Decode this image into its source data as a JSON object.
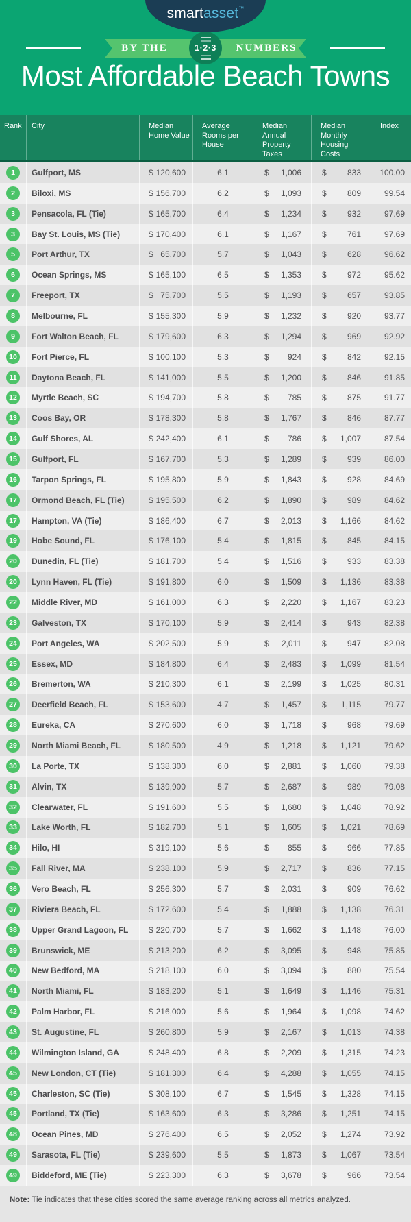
{
  "brand": {
    "smart": "smart",
    "asset": "asset",
    "tm": "™"
  },
  "banner": {
    "left": "BY THE",
    "right": "NUMBERS",
    "badge": "1·2·3"
  },
  "title": "Most Affordable Beach Towns",
  "footer": {
    "note_label": "Note:",
    "note_text": " Tie indicates that these cities scored the same average ranking across all metrics analyzed."
  },
  "colors": {
    "background": "#0BA572",
    "table_header": "#18835E",
    "rank_badge": "#4CC368",
    "ribbon": "#55C46E",
    "ribbon_circle": "#0E7F57",
    "logo_navy": "#1B3D54",
    "logo_asset_blue": "#56B8DB",
    "row_dark": "#E1E1E1",
    "row_light": "#EFEFEF"
  },
  "chart_data": {
    "type": "table",
    "title": "Most Affordable Beach Towns",
    "columns": [
      "Rank",
      "City",
      "Median Home Value",
      "Average Rooms per House",
      "Median Annual Property Taxes",
      "Median Monthly Housing Costs",
      "Index"
    ],
    "rows": [
      {
        "rank": "1",
        "city": "Gulfport, MS",
        "home_value": "120,600",
        "rooms": "6.1",
        "taxes": "1,006",
        "costs": "833",
        "index": "100.00"
      },
      {
        "rank": "2",
        "city": "Biloxi, MS",
        "home_value": "156,700",
        "rooms": "6.2",
        "taxes": "1,093",
        "costs": "809",
        "index": "99.54"
      },
      {
        "rank": "3",
        "city": "Pensacola, FL (Tie)",
        "home_value": "165,700",
        "rooms": "6.4",
        "taxes": "1,234",
        "costs": "932",
        "index": "97.69"
      },
      {
        "rank": "3",
        "city": "Bay St. Louis, MS (Tie)",
        "home_value": "170,400",
        "rooms": "6.1",
        "taxes": "1,167",
        "costs": "761",
        "index": "97.69"
      },
      {
        "rank": "5",
        "city": "Port Arthur, TX",
        "home_value": "65,700",
        "rooms": "5.7",
        "taxes": "1,043",
        "costs": "628",
        "index": "96.62"
      },
      {
        "rank": "6",
        "city": "Ocean Springs, MS",
        "home_value": "165,100",
        "rooms": "6.5",
        "taxes": "1,353",
        "costs": "972",
        "index": "95.62"
      },
      {
        "rank": "7",
        "city": "Freeport, TX",
        "home_value": "75,700",
        "rooms": "5.5",
        "taxes": "1,193",
        "costs": "657",
        "index": "93.85"
      },
      {
        "rank": "8",
        "city": "Melbourne, FL",
        "home_value": "155,300",
        "rooms": "5.9",
        "taxes": "1,232",
        "costs": "920",
        "index": "93.77"
      },
      {
        "rank": "9",
        "city": "Fort Walton Beach, FL",
        "home_value": "179,600",
        "rooms": "6.3",
        "taxes": "1,294",
        "costs": "969",
        "index": "92.92"
      },
      {
        "rank": "10",
        "city": "Fort Pierce, FL",
        "home_value": "100,100",
        "rooms": "5.3",
        "taxes": "924",
        "costs": "842",
        "index": "92.15"
      },
      {
        "rank": "11",
        "city": "Daytona Beach, FL",
        "home_value": "141,000",
        "rooms": "5.5",
        "taxes": "1,200",
        "costs": "846",
        "index": "91.85"
      },
      {
        "rank": "12",
        "city": "Myrtle Beach, SC",
        "home_value": "194,700",
        "rooms": "5.8",
        "taxes": "785",
        "costs": "875",
        "index": "91.77"
      },
      {
        "rank": "13",
        "city": "Coos Bay, OR",
        "home_value": "178,300",
        "rooms": "5.8",
        "taxes": "1,767",
        "costs": "846",
        "index": "87.77"
      },
      {
        "rank": "14",
        "city": "Gulf Shores, AL",
        "home_value": "242,400",
        "rooms": "6.1",
        "taxes": "786",
        "costs": "1,007",
        "index": "87.54"
      },
      {
        "rank": "15",
        "city": "Gulfport, FL",
        "home_value": "167,700",
        "rooms": "5.3",
        "taxes": "1,289",
        "costs": "939",
        "index": "86.00"
      },
      {
        "rank": "16",
        "city": "Tarpon Springs, FL",
        "home_value": "195,800",
        "rooms": "5.9",
        "taxes": "1,843",
        "costs": "928",
        "index": "84.69"
      },
      {
        "rank": "17",
        "city": "Ormond Beach, FL (Tie)",
        "home_value": "195,500",
        "rooms": "6.2",
        "taxes": "1,890",
        "costs": "989",
        "index": "84.62"
      },
      {
        "rank": "17",
        "city": "Hampton, VA (Tie)",
        "home_value": "186,400",
        "rooms": "6.7",
        "taxes": "2,013",
        "costs": "1,166",
        "index": "84.62"
      },
      {
        "rank": "19",
        "city": "Hobe Sound, FL",
        "home_value": "176,100",
        "rooms": "5.4",
        "taxes": "1,815",
        "costs": "845",
        "index": "84.15"
      },
      {
        "rank": "20",
        "city": "Dunedin, FL (Tie)",
        "home_value": "181,700",
        "rooms": "5.4",
        "taxes": "1,516",
        "costs": "933",
        "index": "83.38"
      },
      {
        "rank": "20",
        "city": "Lynn Haven, FL (Tie)",
        "home_value": "191,800",
        "rooms": "6.0",
        "taxes": "1,509",
        "costs": "1,136",
        "index": "83.38"
      },
      {
        "rank": "22",
        "city": "Middle River, MD",
        "home_value": "161,000",
        "rooms": "6.3",
        "taxes": "2,220",
        "costs": "1,167",
        "index": "83.23"
      },
      {
        "rank": "23",
        "city": "Galveston, TX",
        "home_value": "170,100",
        "rooms": "5.9",
        "taxes": "2,414",
        "costs": "943",
        "index": "82.38"
      },
      {
        "rank": "24",
        "city": "Port Angeles, WA",
        "home_value": "202,500",
        "rooms": "5.9",
        "taxes": "2,011",
        "costs": "947",
        "index": "82.08"
      },
      {
        "rank": "25",
        "city": "Essex, MD",
        "home_value": "184,800",
        "rooms": "6.4",
        "taxes": "2,483",
        "costs": "1,099",
        "index": "81.54"
      },
      {
        "rank": "26",
        "city": "Bremerton, WA",
        "home_value": "210,300",
        "rooms": "6.1",
        "taxes": "2,199",
        "costs": "1,025",
        "index": "80.31"
      },
      {
        "rank": "27",
        "city": "Deerfield Beach, FL",
        "home_value": "153,600",
        "rooms": "4.7",
        "taxes": "1,457",
        "costs": "1,115",
        "index": "79.77"
      },
      {
        "rank": "28",
        "city": "Eureka, CA",
        "home_value": "270,600",
        "rooms": "6.0",
        "taxes": "1,718",
        "costs": "968",
        "index": "79.69"
      },
      {
        "rank": "29",
        "city": "North Miami Beach, FL",
        "home_value": "180,500",
        "rooms": "4.9",
        "taxes": "1,218",
        "costs": "1,121",
        "index": "79.62"
      },
      {
        "rank": "30",
        "city": "La Porte, TX",
        "home_value": "138,300",
        "rooms": "6.0",
        "taxes": "2,881",
        "costs": "1,060",
        "index": "79.38"
      },
      {
        "rank": "31",
        "city": "Alvin, TX",
        "home_value": "139,900",
        "rooms": "5.7",
        "taxes": "2,687",
        "costs": "989",
        "index": "79.08"
      },
      {
        "rank": "32",
        "city": "Clearwater, FL",
        "home_value": "191,600",
        "rooms": "5.5",
        "taxes": "1,680",
        "costs": "1,048",
        "index": "78.92"
      },
      {
        "rank": "33",
        "city": "Lake Worth, FL",
        "home_value": "182,700",
        "rooms": "5.1",
        "taxes": "1,605",
        "costs": "1,021",
        "index": "78.69"
      },
      {
        "rank": "34",
        "city": "Hilo, HI",
        "home_value": "319,100",
        "rooms": "5.6",
        "taxes": "855",
        "costs": "966",
        "index": "77.85"
      },
      {
        "rank": "35",
        "city": "Fall River, MA",
        "home_value": "238,100",
        "rooms": "5.9",
        "taxes": "2,717",
        "costs": "836",
        "index": "77.15"
      },
      {
        "rank": "36",
        "city": "Vero Beach, FL",
        "home_value": "256,300",
        "rooms": "5.7",
        "taxes": "2,031",
        "costs": "909",
        "index": "76.62"
      },
      {
        "rank": "37",
        "city": "Riviera Beach, FL",
        "home_value": "172,600",
        "rooms": "5.4",
        "taxes": "1,888",
        "costs": "1,138",
        "index": "76.31"
      },
      {
        "rank": "38",
        "city": "Upper Grand Lagoon, FL",
        "home_value": "220,700",
        "rooms": "5.7",
        "taxes": "1,662",
        "costs": "1,148",
        "index": "76.00"
      },
      {
        "rank": "39",
        "city": "Brunswick, ME",
        "home_value": "213,200",
        "rooms": "6.2",
        "taxes": "3,095",
        "costs": "948",
        "index": "75.85"
      },
      {
        "rank": "40",
        "city": "New Bedford, MA",
        "home_value": "218,100",
        "rooms": "6.0",
        "taxes": "3,094",
        "costs": "880",
        "index": "75.54"
      },
      {
        "rank": "41",
        "city": "North Miami, FL",
        "home_value": "183,200",
        "rooms": "5.1",
        "taxes": "1,649",
        "costs": "1,146",
        "index": "75.31"
      },
      {
        "rank": "42",
        "city": "Palm Harbor, FL",
        "home_value": "216,000",
        "rooms": "5.6",
        "taxes": "1,964",
        "costs": "1,098",
        "index": "74.62"
      },
      {
        "rank": "43",
        "city": "St. Augustine, FL",
        "home_value": "260,800",
        "rooms": "5.9",
        "taxes": "2,167",
        "costs": "1,013",
        "index": "74.38"
      },
      {
        "rank": "44",
        "city": "Wilmington Island, GA",
        "home_value": "248,400",
        "rooms": "6.8",
        "taxes": "2,209",
        "costs": "1,315",
        "index": "74.23"
      },
      {
        "rank": "45",
        "city": "New London, CT (Tie)",
        "home_value": "181,300",
        "rooms": "6.4",
        "taxes": "4,288",
        "costs": "1,055",
        "index": "74.15"
      },
      {
        "rank": "45",
        "city": "Charleston, SC (Tie)",
        "home_value": "308,100",
        "rooms": "6.7",
        "taxes": "1,545",
        "costs": "1,328",
        "index": "74.15"
      },
      {
        "rank": "45",
        "city": "Portland, TX (Tie)",
        "home_value": "163,600",
        "rooms": "6.3",
        "taxes": "3,286",
        "costs": "1,251",
        "index": "74.15"
      },
      {
        "rank": "48",
        "city": "Ocean Pines, MD",
        "home_value": "276,400",
        "rooms": "6.5",
        "taxes": "2,052",
        "costs": "1,274",
        "index": "73.92"
      },
      {
        "rank": "49",
        "city": "Sarasota, FL (Tie)",
        "home_value": "239,600",
        "rooms": "5.5",
        "taxes": "1,873",
        "costs": "1,067",
        "index": "73.54"
      },
      {
        "rank": "49",
        "city": "Biddeford, ME (Tie)",
        "home_value": "223,300",
        "rooms": "6.3",
        "taxes": "3,678",
        "costs": "966",
        "index": "73.54"
      }
    ]
  }
}
